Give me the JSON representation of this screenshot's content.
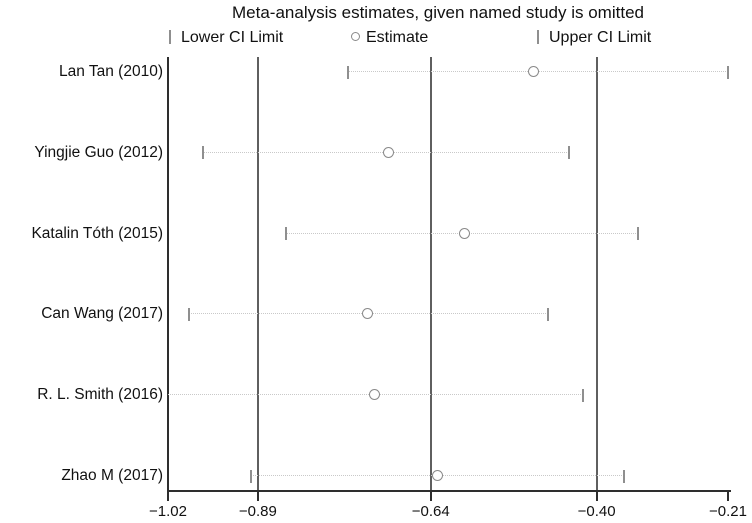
{
  "title": "Meta-analysis estimates, given named study is omitted",
  "chart_data": {
    "type": "scatter",
    "subtype": "leave-one-out meta-analysis sensitivity plot",
    "title": "Meta-analysis estimates, given named study is omitted",
    "xlabel": "",
    "ylabel": "",
    "xlim": [
      -1.02,
      -0.21
    ],
    "grid": false,
    "legend_position": "top",
    "legend": [
      {
        "marker": "tick",
        "label": "Lower CI Limit"
      },
      {
        "marker": "circle",
        "label": "Estimate"
      },
      {
        "marker": "tick",
        "label": "Upper CI Limit"
      }
    ],
    "x_ticks": [
      {
        "value": -1.02,
        "label": "−1.02"
      },
      {
        "value": -0.89,
        "label": "−0.89"
      },
      {
        "value": -0.64,
        "label": "−0.64"
      },
      {
        "value": -0.4,
        "label": "−0.40"
      },
      {
        "value": -0.21,
        "label": "−0.21"
      }
    ],
    "ref_lines": [
      {
        "value": -0.89,
        "meaning": "overall lower CI limit"
      },
      {
        "value": -0.64,
        "meaning": "overall estimate"
      },
      {
        "value": -0.4,
        "meaning": "overall upper CI limit"
      }
    ],
    "studies": [
      {
        "label": "Lan Tan (2010)",
        "lower_ci": -0.76,
        "estimate": -0.49,
        "upper_ci": -0.21,
        "lower_tick_visible": true
      },
      {
        "label": "Yingjie Guo (2012)",
        "lower_ci": -0.97,
        "estimate": -0.7,
        "upper_ci": -0.44,
        "lower_tick_visible": true
      },
      {
        "label": "Katalin Tóth (2015)",
        "lower_ci": -0.85,
        "estimate": -0.59,
        "upper_ci": -0.34,
        "lower_tick_visible": true
      },
      {
        "label": "Can Wang (2017)",
        "lower_ci": -0.99,
        "estimate": -0.73,
        "upper_ci": -0.47,
        "lower_tick_visible": true
      },
      {
        "label": "R. L. Smith (2016)",
        "lower_ci": -1.02,
        "estimate": -0.72,
        "upper_ci": -0.42,
        "lower_tick_visible": false
      },
      {
        "label": "Zhao M (2017)",
        "lower_ci": -0.9,
        "estimate": -0.63,
        "upper_ci": -0.36,
        "lower_tick_visible": true
      }
    ]
  },
  "colors": {
    "background": "#ffffff",
    "text": "#111111",
    "axis": "#2e2e2e",
    "reference_line": "#5f5f5f",
    "ci_dotted_line": "#c9c9c9",
    "ci_tick": "#8f8f8f",
    "estimate_marker": "#8a8a8a"
  }
}
